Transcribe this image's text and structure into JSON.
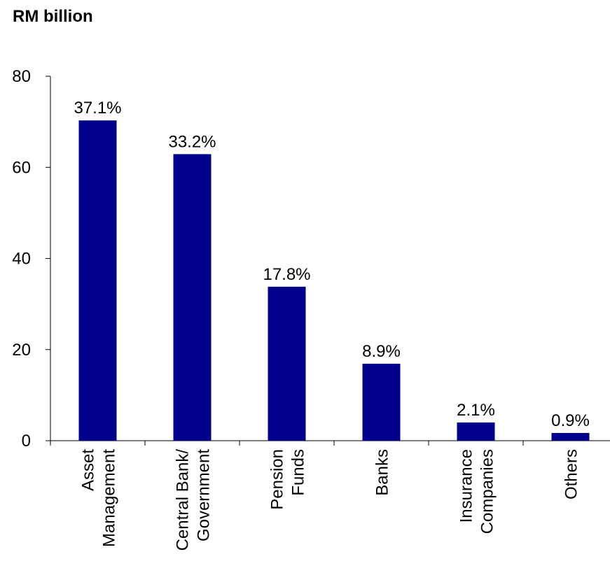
{
  "chart_data": {
    "type": "bar",
    "title": "RM billion",
    "categories": [
      [
        "Asset",
        "Management"
      ],
      [
        "Central Bank/",
        "Government"
      ],
      [
        "Pension",
        "Funds"
      ],
      [
        "Banks"
      ],
      [
        "Insurance",
        "Companies"
      ],
      [
        "Others"
      ]
    ],
    "values": [
      70.3,
      62.9,
      33.8,
      16.9,
      4.0,
      1.7
    ],
    "data_labels": [
      "37.1%",
      "33.2%",
      "17.8%",
      "8.9%",
      "2.1%",
      "0.9%"
    ],
    "y_ticks": [
      "0",
      "20",
      "40",
      "60",
      "80"
    ],
    "ylim": [
      0,
      80
    ],
    "bar_color": "#00008B",
    "grid": false,
    "legend": "none"
  }
}
